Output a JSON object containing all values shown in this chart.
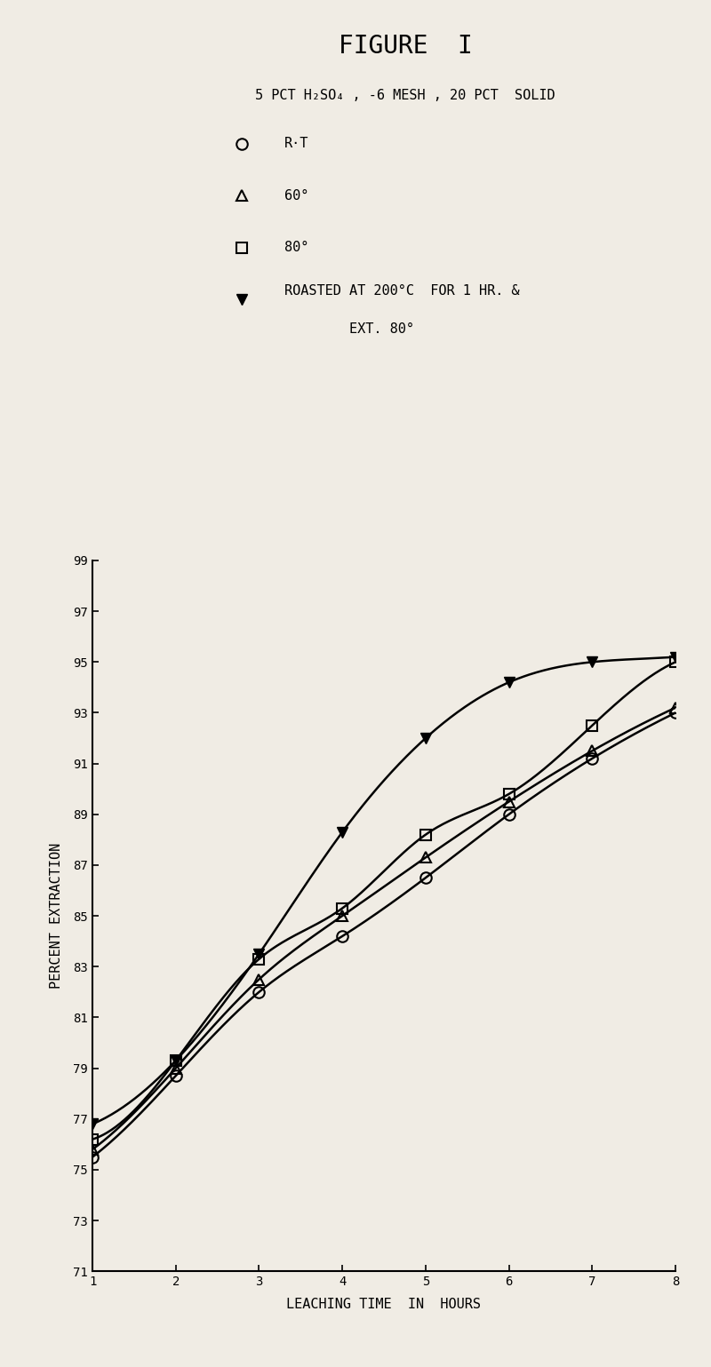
{
  "title": "FIGURE  I",
  "subtitle": "5 PCT H₂SO₄ , -6 MESH , 20 PCT  SOLID",
  "xlabel": "LEACHING TIME  IN  HOURS",
  "ylabel": "PERCENT EXTRACTION",
  "xlim": [
    1,
    8
  ],
  "ylim": [
    71,
    99
  ],
  "xticks": [
    1,
    2,
    3,
    4,
    5,
    6,
    7,
    8
  ],
  "yticks": [
    71,
    73,
    75,
    77,
    79,
    81,
    83,
    85,
    87,
    89,
    91,
    93,
    95,
    97,
    99
  ],
  "background_color": "#f0ece4",
  "series": [
    {
      "label": "R·T",
      "marker": "o",
      "filled": false,
      "color": "#000000",
      "x": [
        1,
        2,
        3,
        4,
        5,
        6,
        7,
        8
      ],
      "y": [
        75.5,
        78.7,
        82.0,
        84.2,
        86.5,
        89.0,
        91.2,
        93.0
      ]
    },
    {
      "label": "60°",
      "marker": "^",
      "filled": false,
      "color": "#000000",
      "x": [
        1,
        2,
        3,
        4,
        5,
        6,
        7,
        8
      ],
      "y": [
        75.8,
        79.0,
        82.5,
        85.0,
        87.3,
        89.5,
        91.5,
        93.2
      ]
    },
    {
      "label": "80°",
      "marker": "s",
      "filled": false,
      "color": "#000000",
      "x": [
        1,
        2,
        3,
        4,
        5,
        6,
        7,
        8
      ],
      "y": [
        76.2,
        79.3,
        83.3,
        85.3,
        88.2,
        89.8,
        92.5,
        95.0
      ]
    },
    {
      "label_line1": "ROASTED AT 200°C  FOR 1 HR. &",
      "label_line2": "        EXT. 80°",
      "marker": "v",
      "filled": true,
      "color": "#000000",
      "x": [
        1,
        2,
        3,
        4,
        5,
        6,
        7,
        8
      ],
      "y": [
        76.8,
        79.3,
        83.5,
        88.3,
        92.0,
        94.2,
        95.0,
        95.2
      ]
    }
  ],
  "legend_marker_size": 9,
  "title_fontsize": 20,
  "subtitle_fontsize": 11,
  "legend_fontsize": 11,
  "axis_label_fontsize": 11,
  "tick_fontsize": 10
}
